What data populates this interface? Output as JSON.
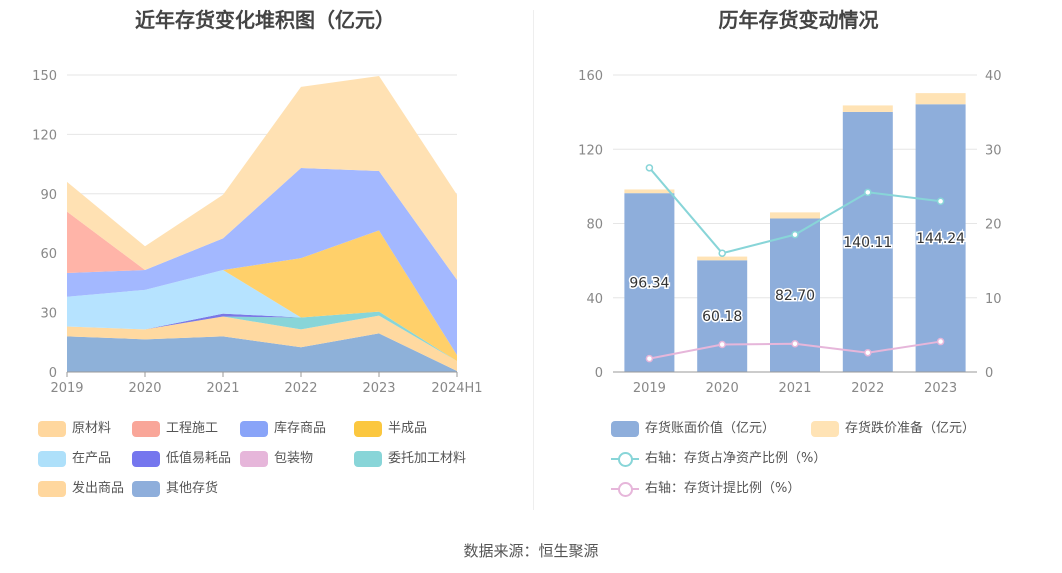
{
  "source": "数据来源：恒生聚源",
  "chart_data": [
    {
      "type": "area",
      "stacked": true,
      "title": "近年存货变化堆积图（亿元）",
      "categories": [
        "2019",
        "2020",
        "2021",
        "2022",
        "2023",
        "2024H1"
      ],
      "y_ticks": [
        "0",
        "30",
        "60",
        "90",
        "120",
        "150"
      ],
      "ylim": [
        0,
        150
      ],
      "grid": true,
      "legend_position": "bottom",
      "series": [
        {
          "name": "其他存货",
          "color": "#8eb1d9",
          "values": [
            18,
            16.5,
            18,
            12.5,
            19.5,
            0.5
          ]
        },
        {
          "name": "发出商品",
          "color": "#ffd9a0",
          "values": [
            5,
            5,
            10,
            9,
            9,
            5
          ]
        },
        {
          "name": "委托加工材料",
          "color": "#88d5d8",
          "values": [
            0,
            0,
            0,
            6,
            2,
            0
          ]
        },
        {
          "name": "包装物",
          "color": "#e7b9dc",
          "values": [
            0,
            0,
            0,
            0,
            0,
            0
          ]
        },
        {
          "name": "低值易耗品",
          "color": "#7a78e6",
          "values": [
            0,
            0,
            1.5,
            0,
            0,
            0
          ]
        },
        {
          "name": "在产品",
          "color": "#b6e3ff",
          "values": [
            15,
            20,
            22,
            0,
            0,
            0
          ]
        },
        {
          "name": "半成品",
          "color": "#ffd06a",
          "values": [
            0,
            0,
            0,
            30,
            41,
            3
          ]
        },
        {
          "name": "库存商品",
          "color": "#a3b8ff",
          "values": [
            12,
            10,
            16,
            45.5,
            30,
            38
          ]
        },
        {
          "name": "工程施工",
          "color": "#ffb4a8",
          "values": [
            31,
            0,
            0,
            0,
            0,
            0
          ]
        },
        {
          "name": "原材料",
          "color": "#ffe1b3",
          "values": [
            15,
            12,
            22,
            41,
            48,
            43
          ]
        }
      ],
      "legend": [
        {
          "name": "原材料",
          "color": "#ffd79e"
        },
        {
          "name": "工程施工",
          "color": "#f9a699"
        },
        {
          "name": "库存商品",
          "color": "#89a4f8"
        },
        {
          "name": "半成品",
          "color": "#fbc73f"
        },
        {
          "name": "在产品",
          "color": "#aee0fa"
        },
        {
          "name": "低值易耗品",
          "color": "#7576ee"
        },
        {
          "name": "包装物",
          "color": "#e6b6da"
        },
        {
          "name": "委托加工材料",
          "color": "#88d5d8"
        },
        {
          "name": "发出商品",
          "color": "#ffd79e"
        },
        {
          "name": "其他存货",
          "color": "#8eaedb"
        }
      ]
    },
    {
      "type": "bar",
      "stacked": true,
      "title": "历年存货变动情况",
      "categories": [
        "2019",
        "2020",
        "2021",
        "2022",
        "2023"
      ],
      "y_ticks": [
        "0",
        "40",
        "80",
        "120",
        "160"
      ],
      "ylim": [
        0,
        160
      ],
      "y2_ticks": [
        "0",
        "10",
        "20",
        "30",
        "40"
      ],
      "y2lim": [
        0,
        40
      ],
      "grid": true,
      "legend_position": "bottom",
      "series": [
        {
          "name": "存货账面价值（亿元）",
          "color": "#8eaedb",
          "values": [
            96.34,
            60.18,
            82.7,
            140.11,
            144.24
          ],
          "labels": [
            "96.34",
            "60.18",
            "82.70",
            "140.11",
            "144.24"
          ]
        },
        {
          "name": "存货跌价准备（亿元）",
          "color": "#ffe3b5",
          "values": [
            2.0,
            2.0,
            3.3,
            3.5,
            6.0
          ]
        }
      ],
      "line_series": [
        {
          "name": "右轴：存货占净资产比例（%）",
          "color": "#88d5d8",
          "axis": "right",
          "values": [
            27.5,
            16.0,
            18.5,
            24.2,
            23.0
          ]
        },
        {
          "name": "右轴：存货计提比例（%）",
          "color": "#e6b6da",
          "axis": "right",
          "values": [
            1.8,
            3.7,
            3.8,
            2.6,
            4.1
          ]
        }
      ]
    }
  ]
}
